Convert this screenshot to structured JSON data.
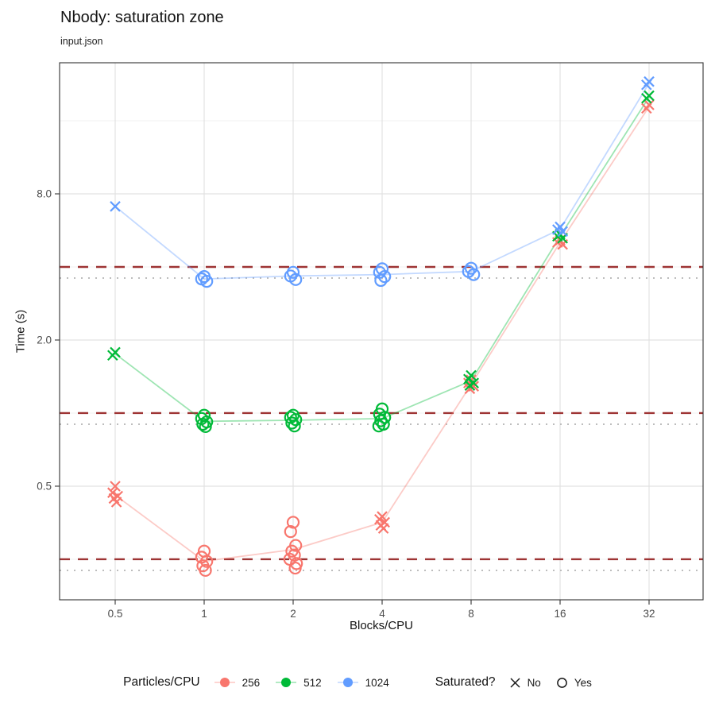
{
  "title": "Nbody: saturation zone",
  "subtitle": "input.json",
  "chart_data": {
    "type": "scatter",
    "title": "Nbody: saturation zone",
    "subtitle": "input.json",
    "xlabel": "Blocks/CPU",
    "ylabel": "Time (s)",
    "x_scale": "log2",
    "y_scale": "log10",
    "x_ticks": [
      0.5,
      1,
      2,
      4,
      8,
      16,
      32
    ],
    "x_tick_labels": [
      "0.5",
      "1",
      "2",
      "4",
      "8",
      "16",
      "32"
    ],
    "y_ticks": [
      0.5,
      2.0,
      8.0
    ],
    "y_tick_labels": [
      "0.5",
      "2.0",
      "8.0"
    ],
    "y_minor_gridlines": [
      0.25,
      1.0,
      4.0,
      16.0
    ],
    "x_axis_range": [
      0.32,
      50
    ],
    "y_axis_range": [
      0.17,
      28
    ],
    "grid": "on",
    "legend": {
      "position": "bottom",
      "color_title": "Particles/CPU",
      "shape_title": "Saturated?",
      "shape_items": [
        {
          "label": "No",
          "shape": "x"
        },
        {
          "label": "Yes",
          "shape": "circle"
        }
      ]
    },
    "reference_lines": [
      {
        "style": "dotted",
        "color": "#BDBDBD",
        "values": [
          3.6,
          0.9,
          0.225
        ]
      },
      {
        "style": "dashed",
        "color": "#9E3434",
        "values": [
          4.0,
          1.0,
          0.25
        ]
      }
    ],
    "series": [
      {
        "name": "256",
        "color": "#F8766D",
        "points": [
          [
            0.5,
            0.5,
            "no"
          ],
          [
            0.5,
            0.47,
            "no"
          ],
          [
            0.5,
            0.455,
            "no"
          ],
          [
            0.5,
            0.445,
            "no"
          ],
          [
            0.5,
            0.43,
            "no"
          ],
          [
            1,
            0.27,
            "yes"
          ],
          [
            1,
            0.255,
            "yes"
          ],
          [
            1,
            0.245,
            "yes"
          ],
          [
            1,
            0.235,
            "yes"
          ],
          [
            1,
            0.225,
            "yes"
          ],
          [
            2,
            0.355,
            "yes"
          ],
          [
            2,
            0.325,
            "yes"
          ],
          [
            2,
            0.285,
            "yes"
          ],
          [
            2,
            0.27,
            "yes"
          ],
          [
            2,
            0.26,
            "yes"
          ],
          [
            2,
            0.25,
            "yes"
          ],
          [
            2,
            0.24,
            "yes"
          ],
          [
            2,
            0.23,
            "yes"
          ],
          [
            4,
            0.375,
            "no"
          ],
          [
            4,
            0.365,
            "no"
          ],
          [
            4,
            0.355,
            "no"
          ],
          [
            4,
            0.345,
            "no"
          ],
          [
            4,
            0.335,
            "no"
          ],
          [
            8,
            1.37,
            "no"
          ],
          [
            8,
            1.33,
            "no"
          ],
          [
            8,
            1.29,
            "no"
          ],
          [
            8,
            1.26,
            "no"
          ],
          [
            16,
            5.15,
            "no"
          ],
          [
            16,
            5.05,
            "no"
          ],
          [
            16,
            4.95,
            "no"
          ],
          [
            32,
            18.6,
            "no"
          ],
          [
            32,
            18.0,
            "no"
          ]
        ]
      },
      {
        "name": "512",
        "color": "#00BA38",
        "points": [
          [
            0.5,
            1.78,
            "no"
          ],
          [
            0.5,
            1.73,
            "no"
          ],
          [
            1,
            0.98,
            "yes"
          ],
          [
            1,
            0.95,
            "yes"
          ],
          [
            1,
            0.92,
            "yes"
          ],
          [
            1,
            0.9,
            "yes"
          ],
          [
            1,
            0.88,
            "yes"
          ],
          [
            2,
            0.98,
            "yes"
          ],
          [
            2,
            0.96,
            "yes"
          ],
          [
            2,
            0.94,
            "yes"
          ],
          [
            2,
            0.91,
            "yes"
          ],
          [
            2,
            0.885,
            "yes"
          ],
          [
            4,
            1.04,
            "yes"
          ],
          [
            4,
            0.99,
            "yes"
          ],
          [
            4,
            0.96,
            "yes"
          ],
          [
            4,
            0.93,
            "yes"
          ],
          [
            4,
            0.9,
            "yes"
          ],
          [
            4,
            0.885,
            "yes"
          ],
          [
            8,
            1.43,
            "no"
          ],
          [
            8,
            1.38,
            "no"
          ],
          [
            8,
            1.33,
            "no"
          ],
          [
            8,
            1.3,
            "no"
          ],
          [
            16,
            5.45,
            "no"
          ],
          [
            16,
            5.35,
            "no"
          ],
          [
            16,
            5.25,
            "no"
          ],
          [
            32,
            20.3,
            "no"
          ],
          [
            32,
            19.8,
            "no"
          ]
        ]
      },
      {
        "name": "1024",
        "color": "#619CFF",
        "points": [
          [
            0.5,
            7.1,
            "no"
          ],
          [
            1,
            3.65,
            "yes"
          ],
          [
            1,
            3.57,
            "yes"
          ],
          [
            1,
            3.49,
            "yes"
          ],
          [
            2,
            3.8,
            "yes"
          ],
          [
            2,
            3.67,
            "yes"
          ],
          [
            2,
            3.55,
            "yes"
          ],
          [
            4,
            3.93,
            "yes"
          ],
          [
            4,
            3.8,
            "yes"
          ],
          [
            4,
            3.65,
            "yes"
          ],
          [
            4,
            3.52,
            "yes"
          ],
          [
            8,
            3.95,
            "yes"
          ],
          [
            8,
            3.83,
            "yes"
          ],
          [
            8,
            3.72,
            "yes"
          ],
          [
            16,
            5.85,
            "no"
          ],
          [
            16,
            5.7,
            "no"
          ],
          [
            16,
            5.6,
            "no"
          ],
          [
            32,
            23.2,
            "no"
          ],
          [
            32,
            22.5,
            "no"
          ]
        ]
      }
    ]
  }
}
